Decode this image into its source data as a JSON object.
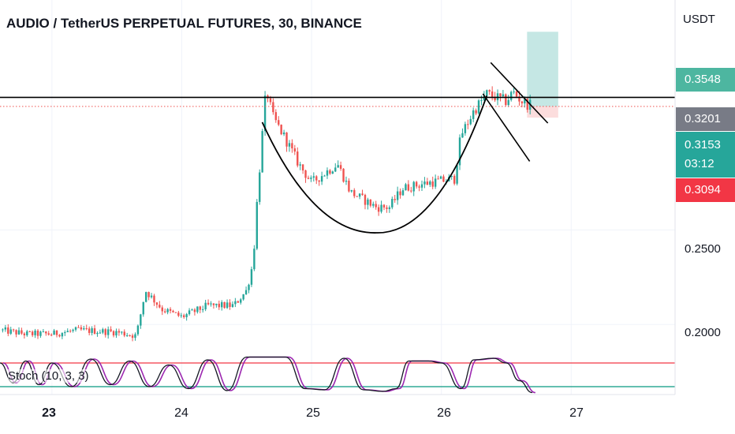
{
  "header": {
    "title": "AUDIO / TetherUS PERPETUAL FUTURES, 30, BINANCE",
    "currency": "USDT"
  },
  "price_axis": {
    "ticks": [
      {
        "value": 0.25,
        "label": "0.2500"
      },
      {
        "value": 0.2,
        "label": "0.2000"
      }
    ]
  },
  "time_axis": {
    "ticks": [
      {
        "day": 23,
        "label": "23",
        "bold": true
      },
      {
        "day": 24,
        "label": "24",
        "bold": false
      },
      {
        "day": 25,
        "label": "25",
        "bold": false
      },
      {
        "day": 26,
        "label": "26",
        "bold": false
      },
      {
        "day": 27,
        "label": "27",
        "bold": false
      }
    ]
  },
  "price_badges": [
    {
      "name": "target-price-badge",
      "label": "0.3548",
      "value": 0.3548,
      "color": "#4db6a0"
    },
    {
      "name": "resistance-price-badge",
      "label": "0.3201",
      "value": 0.3201,
      "color": "#787b86"
    },
    {
      "name": "last-price-badge",
      "label": "0.3153",
      "countdown": "03:12",
      "value": 0.3153,
      "color": "#26a69a"
    },
    {
      "name": "stop-price-badge",
      "label": "0.3094",
      "value": 0.3094,
      "color": "#f23645"
    }
  ],
  "indicator": {
    "label": "Stoch (10, 3, 3)",
    "overbought": 80,
    "oversold": 20,
    "line_colors": {
      "k": "#131722",
      "d": "#9c27b0"
    }
  },
  "colors": {
    "up": "#26a69a",
    "down": "#ef5350",
    "drawing": "#000000",
    "last_price_line": "#ef5350",
    "target_zone": "#b2dfdb",
    "stop_zone": "#fcd9d9"
  },
  "chart_data": {
    "type": "candlestick",
    "symbol": "AUDIO / TetherUS PERPETUAL FUTURES",
    "interval": "30",
    "exchange": "BINANCE",
    "x_unit": "day of month",
    "xlim": [
      22.6,
      27.8
    ],
    "ylim": [
      0.188,
      0.3716
    ],
    "price_path": [
      {
        "day": 22.6,
        "close": 0.197
      },
      {
        "day": 22.8,
        "close": 0.195
      },
      {
        "day": 23.0,
        "close": 0.195
      },
      {
        "day": 23.2,
        "close": 0.197
      },
      {
        "day": 23.5,
        "close": 0.196
      },
      {
        "day": 23.65,
        "close": 0.194
      },
      {
        "day": 23.72,
        "close": 0.218
      },
      {
        "day": 23.85,
        "close": 0.208
      },
      {
        "day": 24.0,
        "close": 0.204
      },
      {
        "day": 24.1,
        "close": 0.207
      },
      {
        "day": 24.2,
        "close": 0.21
      },
      {
        "day": 24.4,
        "close": 0.21
      },
      {
        "day": 24.5,
        "close": 0.218
      },
      {
        "day": 24.55,
        "close": 0.233
      },
      {
        "day": 24.58,
        "close": 0.265
      },
      {
        "day": 24.62,
        "close": 0.3
      },
      {
        "day": 24.65,
        "close": 0.325
      },
      {
        "day": 24.7,
        "close": 0.31
      },
      {
        "day": 24.8,
        "close": 0.298
      },
      {
        "day": 24.9,
        "close": 0.285
      },
      {
        "day": 25.0,
        "close": 0.275
      },
      {
        "day": 25.1,
        "close": 0.28
      },
      {
        "day": 25.2,
        "close": 0.285
      },
      {
        "day": 25.3,
        "close": 0.27
      },
      {
        "day": 25.5,
        "close": 0.262
      },
      {
        "day": 25.6,
        "close": 0.262
      },
      {
        "day": 25.7,
        "close": 0.272
      },
      {
        "day": 25.9,
        "close": 0.275
      },
      {
        "day": 26.1,
        "close": 0.277
      },
      {
        "day": 26.15,
        "close": 0.3
      },
      {
        "day": 26.25,
        "close": 0.313
      },
      {
        "day": 26.35,
        "close": 0.322
      },
      {
        "day": 26.5,
        "close": 0.318
      },
      {
        "day": 26.55,
        "close": 0.323
      },
      {
        "day": 26.62,
        "close": 0.318
      },
      {
        "day": 26.7,
        "close": 0.3153
      }
    ],
    "drawings": {
      "resistance_level": 0.3201,
      "cup_curve": {
        "start": [
          24.62,
          0.307
        ],
        "bottom": [
          25.5,
          0.2485
        ],
        "end": [
          26.35,
          0.321
        ]
      },
      "channel_upper": {
        "from": [
          26.38,
          0.3385
        ],
        "to": [
          26.82,
          0.3065
        ]
      },
      "channel_lower": {
        "from": [
          26.32,
          0.322
        ],
        "to": [
          26.68,
          0.2863
        ]
      },
      "long_position": {
        "from_day": 26.66,
        "to_day": 26.9,
        "entry": 0.3153,
        "target": 0.3548,
        "stop": 0.3094
      }
    },
    "stochastic": {
      "params": "10, 3, 3",
      "levels": [
        80,
        20
      ],
      "k_path": [
        {
          "day": 22.6,
          "value": 80
        },
        {
          "day": 22.7,
          "value": 30
        },
        {
          "day": 22.8,
          "value": 85
        },
        {
          "day": 22.9,
          "value": 25
        },
        {
          "day": 23.0,
          "value": 80
        },
        {
          "day": 23.15,
          "value": 20
        },
        {
          "day": 23.3,
          "value": 90
        },
        {
          "day": 23.45,
          "value": 25
        },
        {
          "day": 23.6,
          "value": 85
        },
        {
          "day": 23.75,
          "value": 20
        },
        {
          "day": 23.9,
          "value": 75
        },
        {
          "day": 24.05,
          "value": 15
        },
        {
          "day": 24.2,
          "value": 88
        },
        {
          "day": 24.35,
          "value": 10
        },
        {
          "day": 24.5,
          "value": 95
        },
        {
          "day": 24.8,
          "value": 95
        },
        {
          "day": 24.95,
          "value": 15
        },
        {
          "day": 25.1,
          "value": 12
        },
        {
          "day": 25.25,
          "value": 92
        },
        {
          "day": 25.4,
          "value": 12
        },
        {
          "day": 25.55,
          "value": 8
        },
        {
          "day": 25.65,
          "value": 15
        },
        {
          "day": 25.75,
          "value": 85
        },
        {
          "day": 25.9,
          "value": 85
        },
        {
          "day": 26.0,
          "value": 80
        },
        {
          "day": 26.15,
          "value": 15
        },
        {
          "day": 26.25,
          "value": 88
        },
        {
          "day": 26.4,
          "value": 92
        },
        {
          "day": 26.5,
          "value": 80
        },
        {
          "day": 26.6,
          "value": 35
        },
        {
          "day": 26.7,
          "value": 5
        }
      ]
    }
  }
}
